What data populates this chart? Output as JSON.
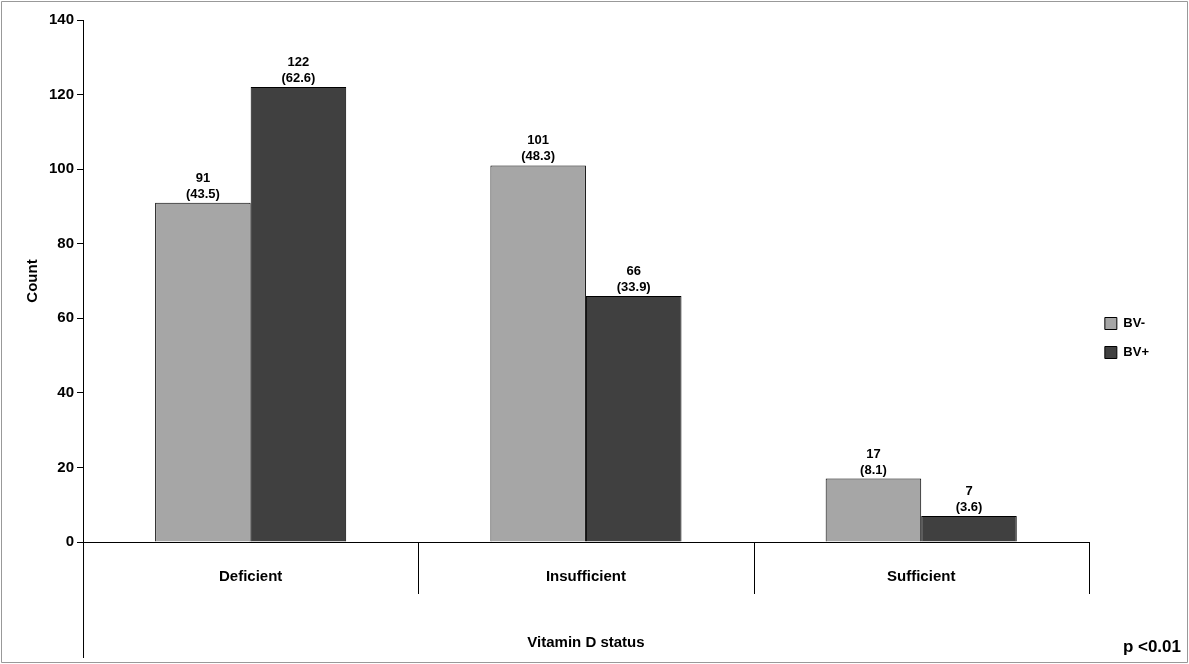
{
  "chart_data": {
    "type": "bar",
    "xlabel": "Vitamin D status",
    "ylabel": "Count",
    "categories": [
      "Deficient",
      "Insufficient",
      "Sufficient"
    ],
    "series": [
      {
        "name": "BV-",
        "color": "#a6a6a6",
        "values": [
          91,
          101,
          17
        ],
        "value_labels": [
          "91\n(43.5)",
          "101\n(48.3)",
          "17\n(8.1)"
        ]
      },
      {
        "name": "BV+",
        "color": "#404040",
        "values": [
          122,
          66,
          7
        ],
        "value_labels": [
          "122\n(62.6)",
          "66\n(33.9)",
          "7\n(3.6)"
        ]
      }
    ],
    "ylim": [
      0,
      140
    ],
    "yticks": [
      0,
      20,
      40,
      60,
      80,
      100,
      120,
      140
    ],
    "grid": false,
    "legend": "right",
    "annotations": [
      "p <0.01"
    ]
  }
}
